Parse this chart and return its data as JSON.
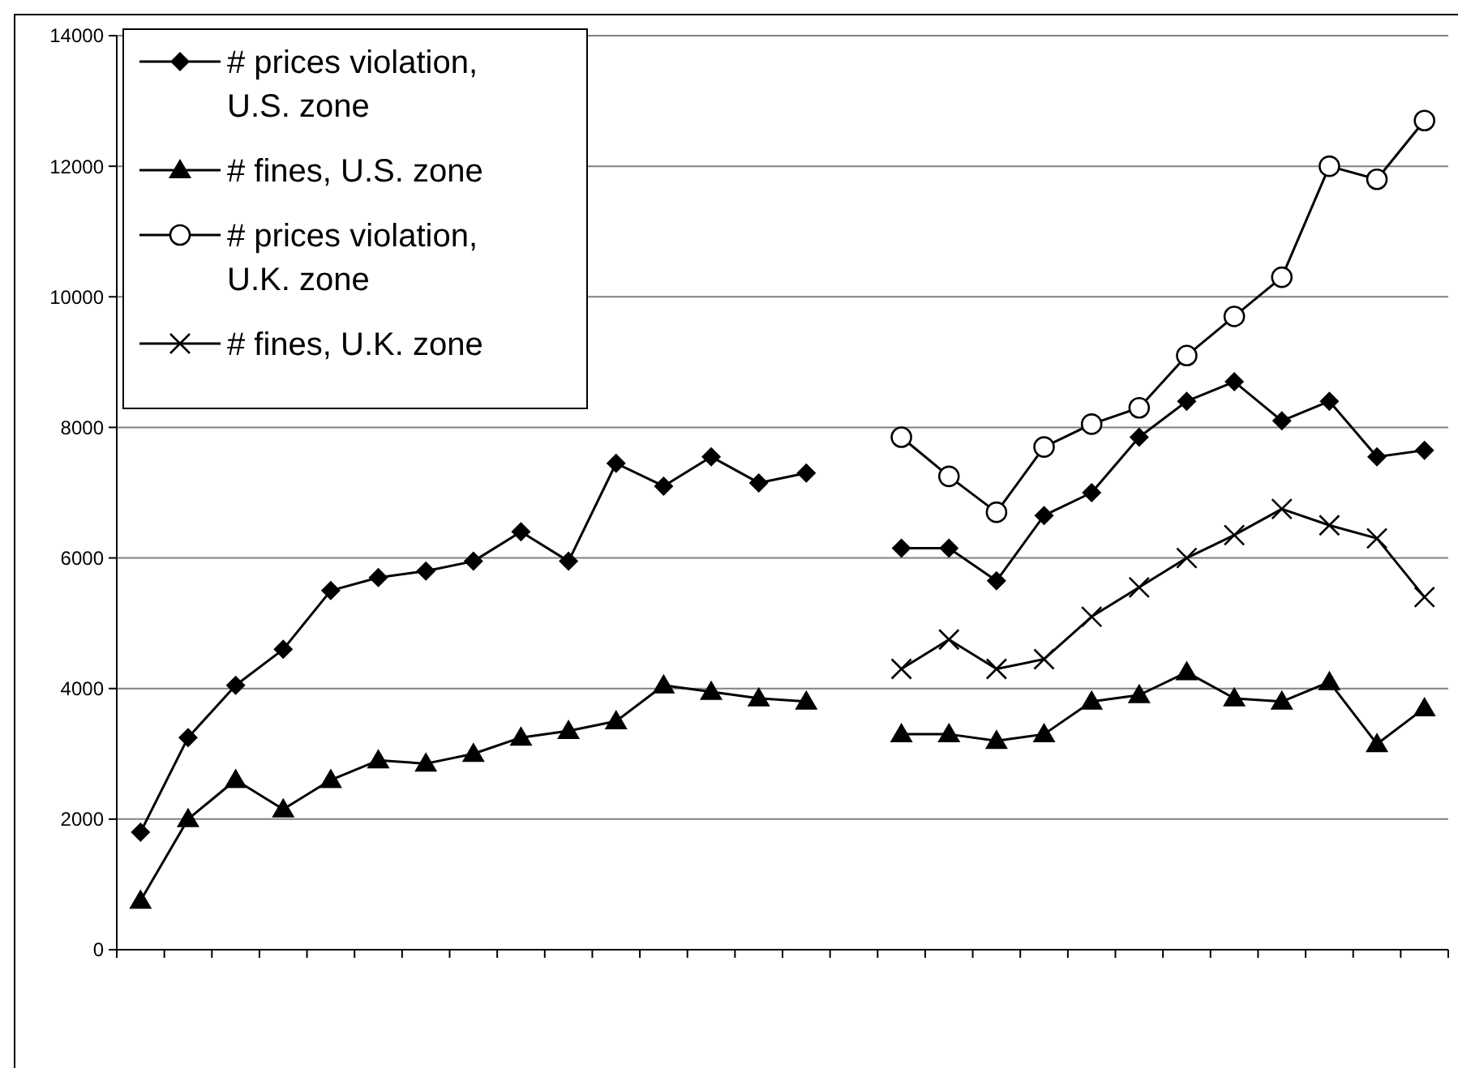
{
  "chart_data": {
    "type": "line",
    "categories": [
      null,
      null,
      null,
      null,
      null,
      null,
      null,
      null,
      null,
      null,
      null,
      null,
      null,
      null,
      null,
      null,
      null,
      null,
      null,
      null,
      null,
      null,
      null,
      null,
      null,
      null,
      null,
      null
    ],
    "ylim": [
      0,
      14000
    ],
    "yticks": [
      0,
      2000,
      4000,
      6000,
      8000,
      10000,
      12000,
      14000
    ],
    "grid": "y",
    "legend": "top left",
    "tick_labels": "y",
    "line_style": "solid",
    "series": [
      {
        "name": "# prices violation, U.S. zone",
        "color": "#000000",
        "marker": "diamond",
        "values": [
          1800,
          3250,
          4050,
          4600,
          5500,
          5700,
          5800,
          5950,
          6400,
          5950,
          7450,
          7100,
          7550,
          7150,
          7300,
          null,
          6150,
          6150,
          5650,
          6650,
          7000,
          7850,
          8400,
          8700,
          8100,
          8400,
          7550,
          7650
        ]
      },
      {
        "name": "# fines, U.S. zone",
        "color": "#000000",
        "marker": "triangle",
        "values": [
          750,
          2000,
          2600,
          2150,
          2600,
          2900,
          2850,
          3000,
          3250,
          3350,
          3500,
          4050,
          3950,
          3850,
          3800,
          null,
          3300,
          3300,
          3200,
          3300,
          3800,
          3900,
          4250,
          3850,
          3800,
          4100,
          3150,
          3700
        ]
      },
      {
        "name": "# prices violation, U.K. zone",
        "color": "#000000",
        "marker": "circle",
        "values": [
          null,
          null,
          null,
          null,
          null,
          null,
          null,
          null,
          null,
          null,
          null,
          null,
          null,
          null,
          null,
          null,
          7850,
          7250,
          6700,
          7700,
          8050,
          8300,
          9100,
          9700,
          10300,
          12000,
          11800,
          12700
        ]
      },
      {
        "name": "# fines, U.K. zone",
        "color": "#000000",
        "marker": "cross",
        "values": [
          null,
          null,
          null,
          null,
          null,
          null,
          null,
          null,
          null,
          null,
          null,
          null,
          null,
          null,
          null,
          null,
          4300,
          4750,
          4300,
          4450,
          5100,
          5550,
          6000,
          6350,
          6750,
          6500,
          6300,
          5400
        ]
      }
    ]
  }
}
